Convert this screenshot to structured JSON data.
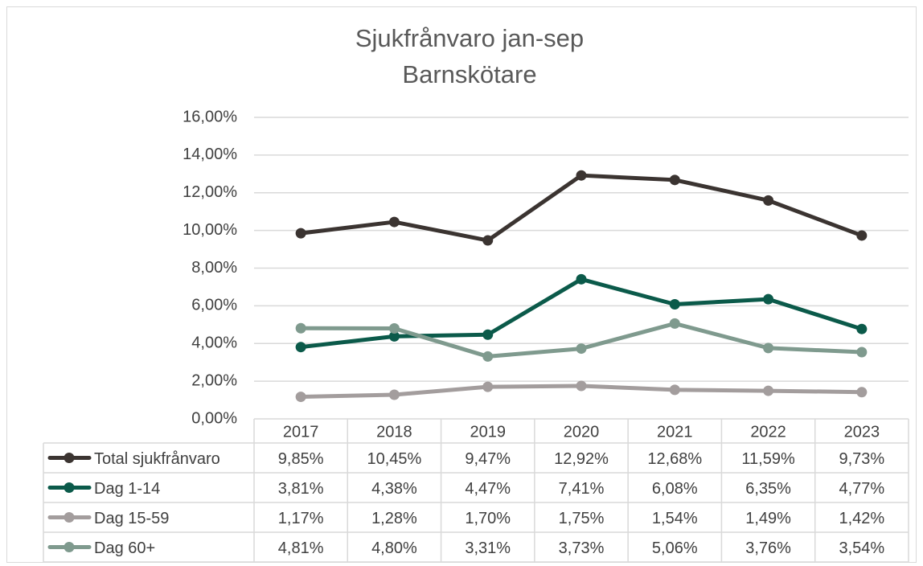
{
  "chart_data": {
    "type": "line",
    "title": "Sjukfrånvaro jan-sep",
    "subtitle": "Barnskötare",
    "categories": [
      "2017",
      "2018",
      "2019",
      "2020",
      "2021",
      "2022",
      "2023"
    ],
    "series": [
      {
        "name": "Total sjukfrånvaro",
        "color": "#3b3431",
        "values": [
          9.85,
          10.45,
          9.47,
          12.92,
          12.68,
          11.59,
          9.73
        ],
        "value_labels": [
          "9,85%",
          "10,45%",
          "9,47%",
          "12,92%",
          "12,68%",
          "11,59%",
          "9,73%"
        ]
      },
      {
        "name": "Dag 1-14",
        "color": "#0b5a4a",
        "values": [
          3.81,
          4.38,
          4.47,
          7.41,
          6.08,
          6.35,
          4.77
        ],
        "value_labels": [
          "3,81%",
          "4,38%",
          "4,47%",
          "7,41%",
          "6,08%",
          "6,35%",
          "4,77%"
        ]
      },
      {
        "name": "Dag 15-59",
        "color": "#a39d9d",
        "values": [
          1.17,
          1.28,
          1.7,
          1.75,
          1.54,
          1.49,
          1.42
        ],
        "value_labels": [
          "1,17%",
          "1,28%",
          "1,70%",
          "1,75%",
          "1,54%",
          "1,49%",
          "1,42%"
        ]
      },
      {
        "name": "Dag 60+",
        "color": "#7f9a8e",
        "values": [
          4.81,
          4.8,
          3.31,
          3.73,
          5.06,
          3.76,
          3.54
        ],
        "value_labels": [
          "4,81%",
          "4,80%",
          "3,31%",
          "3,73%",
          "5,06%",
          "3,76%",
          "3,54%"
        ]
      }
    ],
    "ylim": [
      0,
      16
    ],
    "yticks": [
      {
        "value": 0,
        "label": "0,00%"
      },
      {
        "value": 2,
        "label": "2,00%"
      },
      {
        "value": 4,
        "label": "4,00%"
      },
      {
        "value": 6,
        "label": "6,00%"
      },
      {
        "value": 8,
        "label": "8,00%"
      },
      {
        "value": 10,
        "label": "10,00%"
      },
      {
        "value": 12,
        "label": "12,00%"
      },
      {
        "value": 14,
        "label": "14,00%"
      },
      {
        "value": 16,
        "label": "16,00%"
      }
    ],
    "grid": true
  }
}
